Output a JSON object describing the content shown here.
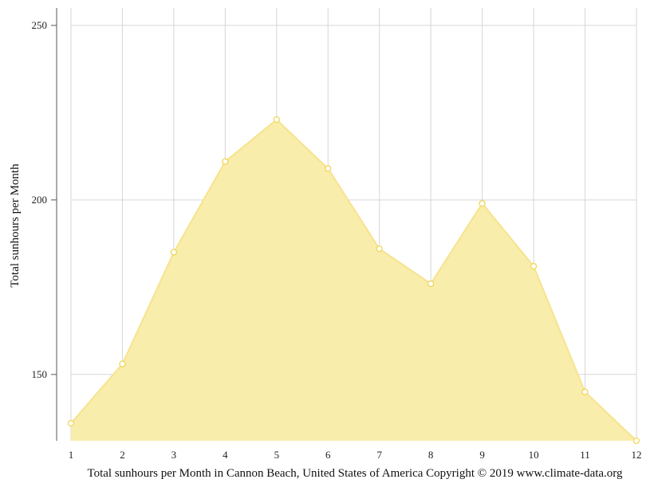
{
  "chart_data": {
    "type": "area",
    "x": [
      1,
      2,
      3,
      4,
      5,
      6,
      7,
      8,
      9,
      10,
      11,
      12
    ],
    "values": [
      136,
      153,
      185,
      211,
      223,
      209,
      186,
      176,
      199,
      181,
      145,
      131
    ],
    "xlabel": "",
    "ylabel": "Total sunhours per Month",
    "caption": "Total sunhours per Month in Cannon Beach, United States of America Copyright © 2019 www.climate-data.org",
    "ylim": [
      131,
      255
    ],
    "yticks": [
      150,
      200,
      250
    ],
    "grid": true,
    "fill_color": "#f9edab",
    "line_color": "#f7e38e",
    "marker_fill": "#ffffff",
    "marker_stroke": "#f0d656"
  }
}
